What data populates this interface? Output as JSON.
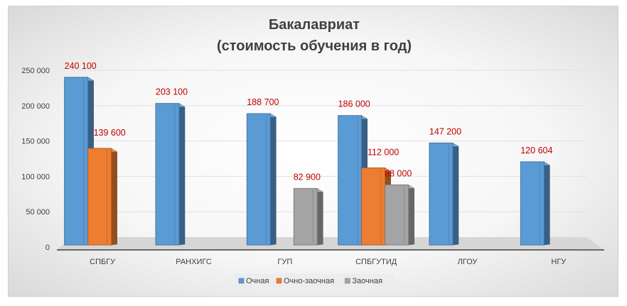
{
  "chart_data": {
    "type": "bar",
    "title_lines": [
      "Бакалавриат",
      "(стоимость обучения в год)"
    ],
    "categories": [
      "СПБГУ",
      "РАНХИГС",
      "ГУП",
      "СПБГУТИД",
      "ЛГОУ",
      "НГУ"
    ],
    "series": [
      {
        "name": "Очная",
        "color": "#5b9bd5",
        "values": [
          240100,
          203100,
          188700,
          186000,
          147200,
          120604
        ],
        "labels": [
          "240 100",
          "203 100",
          "188 700",
          "186 000",
          "147 200",
          "120 604"
        ]
      },
      {
        "name": "Очно-заочная",
        "color": "#ed7d31",
        "values": [
          139600,
          null,
          null,
          112000,
          null,
          null
        ],
        "labels": [
          "139 600",
          null,
          null,
          "112 000",
          null,
          null
        ]
      },
      {
        "name": "Заочная",
        "color": "#a5a5a5",
        "values": [
          null,
          null,
          82900,
          88000,
          null,
          null
        ],
        "labels": [
          null,
          null,
          "82 900",
          "88 000",
          null,
          null
        ]
      }
    ],
    "y_ticks": [
      0,
      50000,
      100000,
      150000,
      200000,
      250000
    ],
    "y_tick_labels": [
      "0",
      "50 000",
      "100 000",
      "150 000",
      "200 000",
      "250 000"
    ],
    "ylim": [
      0,
      250000
    ],
    "grid": true,
    "legend_position": "bottom",
    "label_color": "#c00000"
  }
}
